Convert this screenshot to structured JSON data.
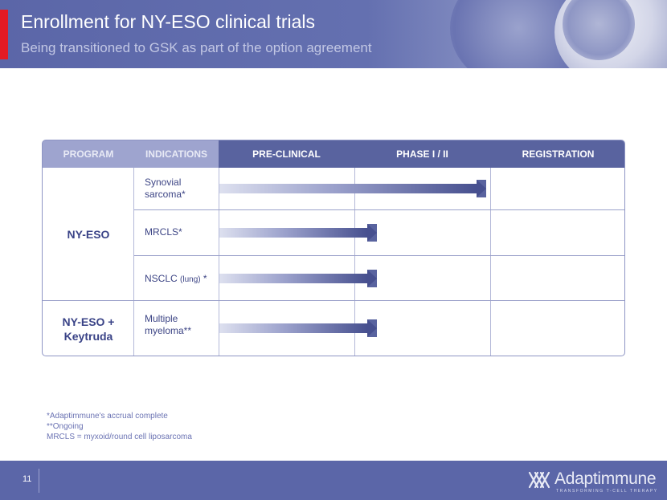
{
  "header": {
    "title": "Enrollment for NY-ESO clinical trials",
    "subtitle": "Being transitioned to GSK as part of the option agreement"
  },
  "table": {
    "columns": [
      "PROGRAM",
      "INDICATIONS",
      "PRE-CLINICAL",
      "PHASE I / II",
      "REGISTRATION"
    ],
    "groups": [
      {
        "program": "NY-ESO",
        "rows": [
          {
            "indication_lines": [
              "Synovial",
              "sarcoma*"
            ],
            "stage": "PHASE I / II",
            "progress": 1.0
          },
          {
            "indication": "MRCLS*",
            "stage": "PHASE I / II",
            "progress": 0.5
          },
          {
            "indication": "NSCLC ",
            "indication_small": "(lung)",
            "indication_suffix": " *",
            "stage": "PHASE I / II",
            "progress": 0.5
          }
        ]
      },
      {
        "program_lines": [
          "NY-ESO +",
          "Keytruda"
        ],
        "rows": [
          {
            "indication_lines": [
              "Multiple",
              "myeloma**"
            ],
            "stage": "PHASE I / II",
            "progress": 0.5
          }
        ]
      }
    ]
  },
  "notes": [
    "*Adaptimmune's accrual complete",
    "**Ongoing",
    "MRCLS = myxoid/round cell liposarcoma"
  ],
  "footer": {
    "page_number": "11",
    "logo_name": "Adaptimmune",
    "logo_tagline": "TRANSFORMING T-CELL THERAPY"
  },
  "colors": {
    "header_blue": "#5b66a8",
    "accent_red": "#e31b23",
    "arrow_dark": "#47508f",
    "table_header": "#59639f",
    "table_header_dim": "#9ea4cf"
  }
}
